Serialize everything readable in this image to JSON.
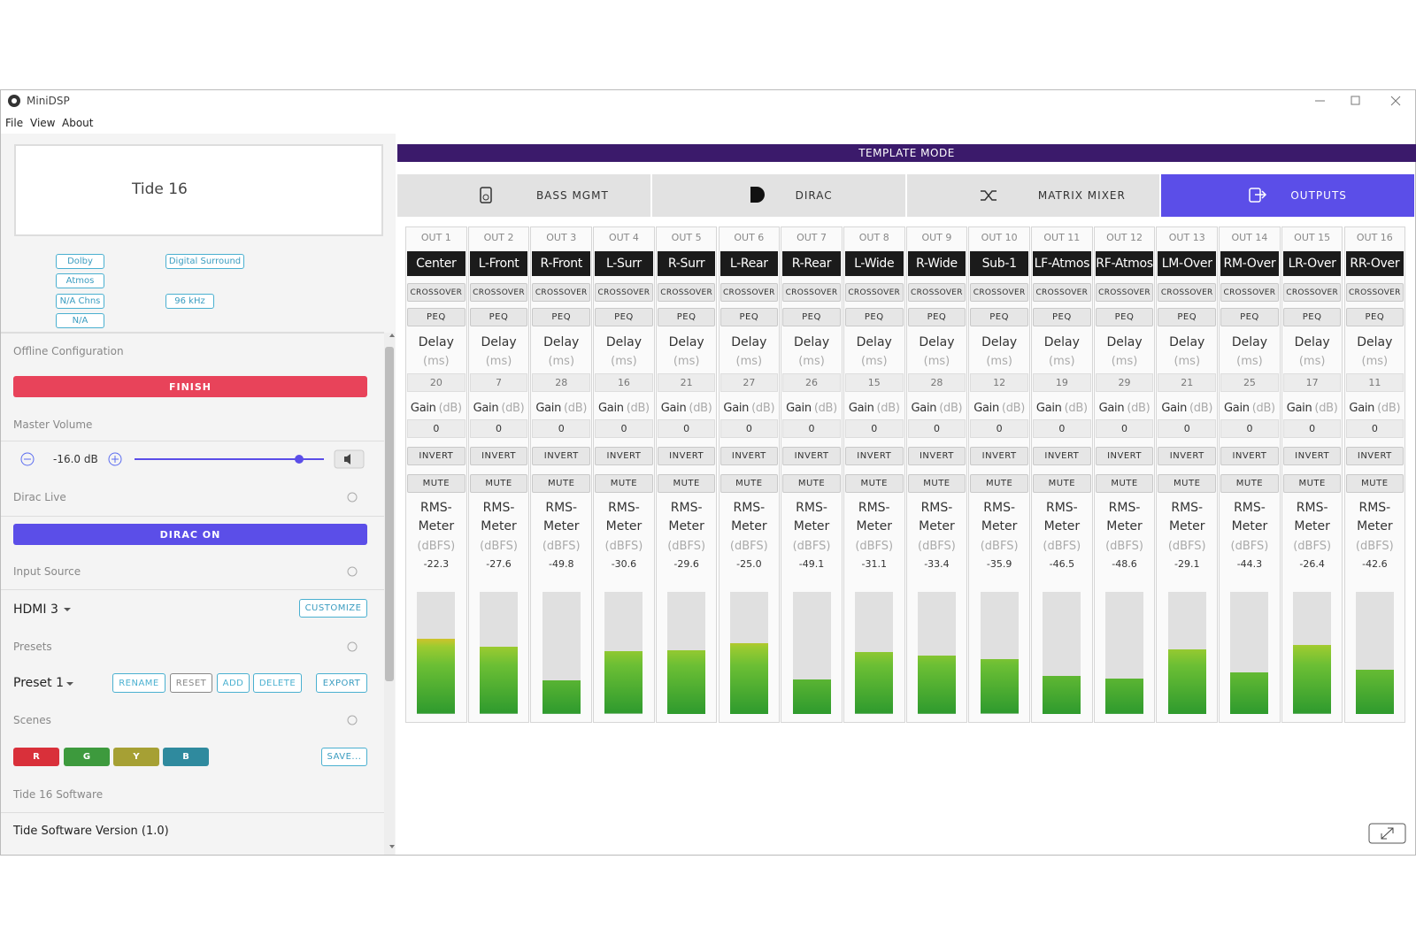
{
  "window": {
    "title": "MiniDSP",
    "menu": [
      "File",
      "View",
      "About"
    ]
  },
  "device": {
    "name": "Tide 16",
    "badges": [
      "Dolby",
      "Atmos",
      "N/A Chns",
      "N/A",
      "Digital Surround",
      "96 kHz"
    ]
  },
  "sidebar": {
    "offline": {
      "label": "Offline Configuration",
      "button": "FINISH"
    },
    "volume": {
      "label": "Master Volume",
      "value": "-16.0 dB"
    },
    "dirac": {
      "label": "Dirac Live",
      "button": "DIRAC ON"
    },
    "input": {
      "label": "Input Source",
      "value": "HDMI 3",
      "button": "CUSTOMIZE"
    },
    "presets": {
      "label": "Presets",
      "value": "Preset 1",
      "buttons": [
        "RENAME",
        "RESET",
        "ADD",
        "DELETE"
      ],
      "export": "EXPORT"
    },
    "scenes": {
      "label": "Scenes",
      "buttons": [
        "R",
        "G",
        "Y",
        "B"
      ],
      "save": "SAVE..."
    },
    "software": {
      "label": "Tide 16 Software",
      "version": "Tide Software Version (1.0)"
    }
  },
  "template_mode": "TEMPLATE MODE",
  "tabs": [
    "BASS MGMT",
    "DIRAC",
    "MATRIX MIXER",
    "OUTPUTS"
  ],
  "labels": {
    "crossover": "CROSSOVER",
    "peq": "PEQ",
    "delay": "Delay",
    "delay_unit": "(ms)",
    "gain": "Gain",
    "gain_unit": "(dB)",
    "invert": "INVERT",
    "mute": "MUTE",
    "rms": "RMS-Meter",
    "rms_unit": "(dBFS)"
  },
  "channels": [
    {
      "out": "OUT 1",
      "name": "Center",
      "delay": 20,
      "gain": 0,
      "rms": -22.3
    },
    {
      "out": "OUT 2",
      "name": "L-Front",
      "delay": 7,
      "gain": 0,
      "rms": -27.6
    },
    {
      "out": "OUT 3",
      "name": "R-Front",
      "delay": 28,
      "gain": 0,
      "rms": -49.8
    },
    {
      "out": "OUT 4",
      "name": "L-Surr",
      "delay": 16,
      "gain": 0,
      "rms": -30.6
    },
    {
      "out": "OUT 5",
      "name": "R-Surr",
      "delay": 21,
      "gain": 0,
      "rms": -29.6
    },
    {
      "out": "OUT 6",
      "name": "L-Rear",
      "delay": 27,
      "gain": 0,
      "rms": {
        "value": -25,
        "label": "-25.0"
      }
    },
    {
      "out": "OUT 7",
      "name": "R-Rear",
      "delay": 26,
      "gain": 0,
      "rms": -49.1
    },
    {
      "out": "OUT 8",
      "name": "L-Wide",
      "delay": 15,
      "gain": 0,
      "rms": -31.1
    },
    {
      "out": "OUT 9",
      "name": "R-Wide",
      "delay": 28,
      "gain": 0,
      "rms": -33.4
    },
    {
      "out": "OUT 10",
      "name": "Sub-1",
      "delay": 12,
      "gain": 0,
      "rms": -35.9
    },
    {
      "out": "OUT 11",
      "name": "LF-Atmos",
      "delay": 19,
      "gain": 0,
      "rms": -46.5
    },
    {
      "out": "OUT 12",
      "name": "RF-Atmos",
      "delay": 29,
      "gain": 0,
      "rms": -48.6
    },
    {
      "out": "OUT 13",
      "name": "LM-Over",
      "delay": 21,
      "gain": 0,
      "rms": -29.1
    },
    {
      "out": "OUT 14",
      "name": "RM-Over",
      "delay": 25,
      "gain": 0,
      "rms": -44.3
    },
    {
      "out": "OUT 15",
      "name": "LR-Over",
      "delay": 17,
      "gain": 0,
      "rms": -26.4
    },
    {
      "out": "OUT 16",
      "name": "RR-Over",
      "delay": 11,
      "gain": 0,
      "rms": -42.6
    }
  ]
}
